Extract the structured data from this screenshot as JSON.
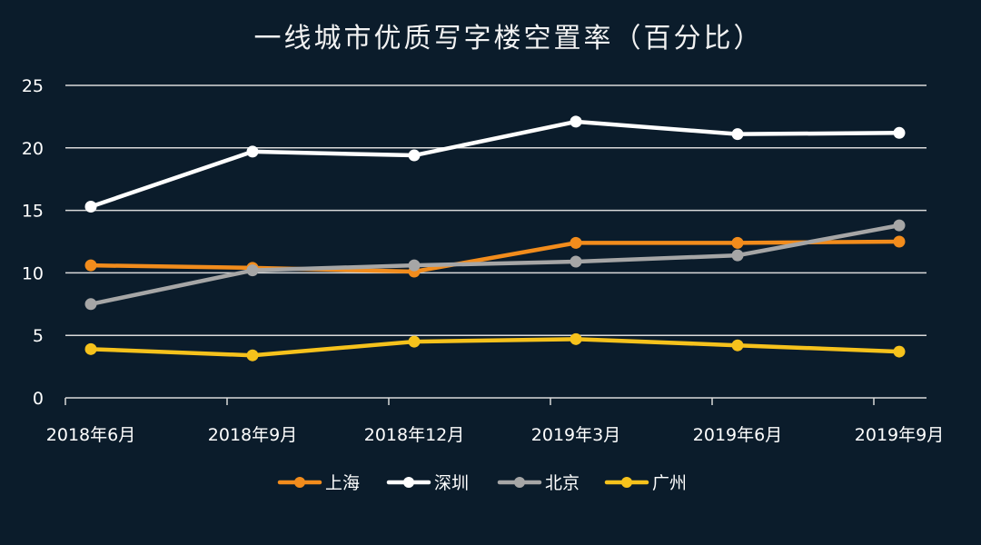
{
  "chart_data": {
    "type": "line",
    "title": "一线城市优质写字楼空置率（百分比）",
    "xlabel": "",
    "ylabel": "",
    "categories": [
      "2018年6月",
      "2018年9月",
      "2018年12月",
      "2019年3月",
      "2019年6月",
      "2019年9月"
    ],
    "ylim": [
      0,
      25
    ],
    "yticks": [
      0,
      5,
      10,
      15,
      20,
      25
    ],
    "grid": true,
    "legend": "bottom",
    "series": [
      {
        "name": "上海",
        "color": "#f28c1c",
        "values": [
          10.6,
          10.4,
          10.1,
          12.4,
          12.4,
          12.5
        ]
      },
      {
        "name": "深圳",
        "color": "#ffffff",
        "values": [
          15.3,
          19.7,
          19.4,
          22.1,
          21.1,
          21.2
        ]
      },
      {
        "name": "北京",
        "color": "#a6a6a6",
        "values": [
          7.5,
          10.2,
          10.6,
          10.9,
          11.4,
          13.8
        ]
      },
      {
        "name": "广州",
        "color": "#f6c21c",
        "values": [
          3.9,
          3.4,
          4.5,
          4.7,
          4.2,
          3.7
        ]
      }
    ]
  }
}
